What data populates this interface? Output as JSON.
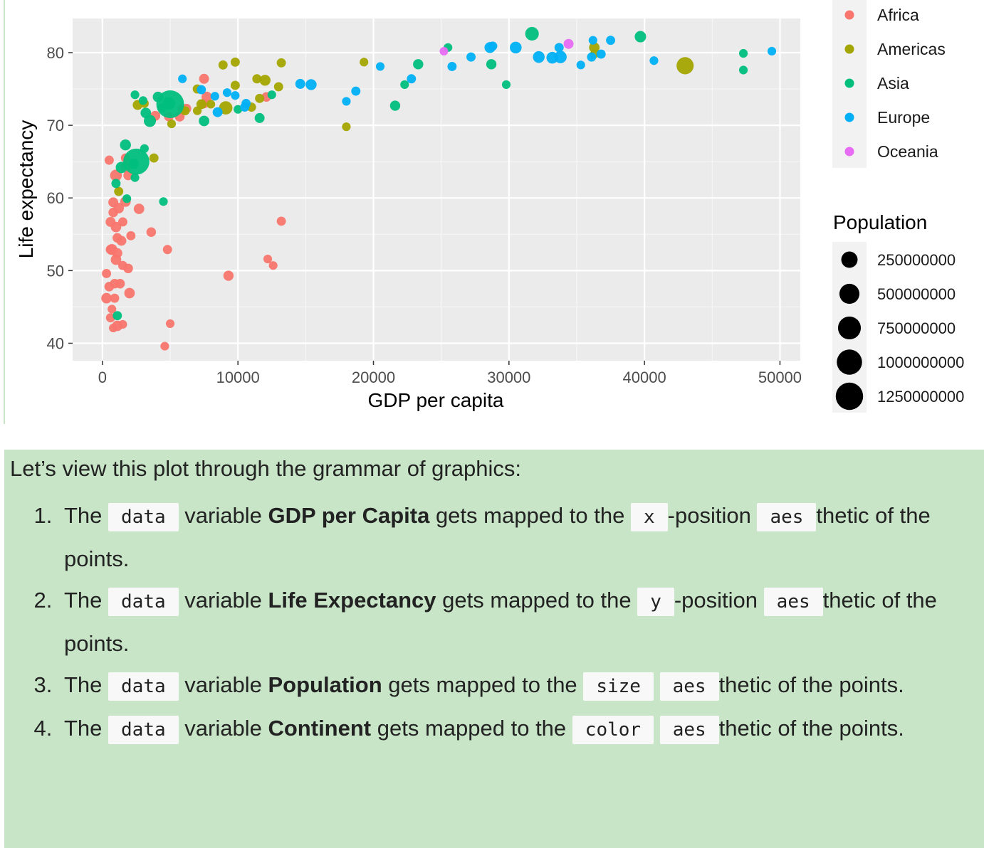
{
  "chart_data": {
    "type": "scatter",
    "title": "",
    "xlabel": "GDP per capita",
    "ylabel": "Life expectancy",
    "xlim": [
      -2200,
      51500
    ],
    "ylim": [
      37.6,
      84.7
    ],
    "xticks": [
      0,
      10000,
      20000,
      30000,
      40000,
      50000
    ],
    "yticks": [
      40,
      50,
      60,
      70,
      80
    ],
    "xtick_labels": [
      "0",
      "10000",
      "20000",
      "30000",
      "40000",
      "50000"
    ],
    "ytick_labels": [
      "40",
      "50",
      "60",
      "70",
      "80"
    ],
    "grid": true,
    "legend": {
      "color_title": "",
      "color_entries": [
        {
          "name": "Africa",
          "color": "#F8766D"
        },
        {
          "name": "Americas",
          "color": "#A3A500"
        },
        {
          "name": "Asia",
          "color": "#00BF7D"
        },
        {
          "name": "Europe",
          "color": "#00B0F6"
        },
        {
          "name": "Oceania",
          "color": "#E76BF3"
        }
      ],
      "size_title": "Population",
      "size_entries": [
        {
          "label": "250000000",
          "value": 250000000
        },
        {
          "label": "500000000",
          "value": 500000000
        },
        {
          "label": "750000000",
          "value": 750000000
        },
        {
          "label": "1000000000",
          "value": 1000000000
        },
        {
          "label": "1250000000",
          "value": 1250000000
        }
      ]
    },
    "series": [
      {
        "name": "Africa",
        "color": "#F8766D",
        "points": [
          [
            4600,
            39.6
          ],
          [
            800,
            42.1
          ],
          [
            1100,
            42.4
          ],
          [
            1500,
            42.6
          ],
          [
            5000,
            42.7
          ],
          [
            600,
            43.5
          ],
          [
            700,
            44.7
          ],
          [
            300,
            46.2
          ],
          [
            900,
            46.2
          ],
          [
            500,
            47.8
          ],
          [
            2000,
            46.9
          ],
          [
            900,
            48.2
          ],
          [
            1300,
            48.2
          ],
          [
            300,
            49.6
          ],
          [
            9300,
            49.3
          ],
          [
            1900,
            50.3
          ],
          [
            1500,
            50.7
          ],
          [
            12200,
            51.6
          ],
          [
            12600,
            50.7
          ],
          [
            1000,
            51.5
          ],
          [
            1100,
            52.4
          ],
          [
            600,
            52.9
          ],
          [
            700,
            52.9
          ],
          [
            4800,
            52.9
          ],
          [
            1400,
            54.1
          ],
          [
            1100,
            54.5
          ],
          [
            2100,
            54.8
          ],
          [
            3600,
            55.3
          ],
          [
            1000,
            56.0
          ],
          [
            600,
            56.7
          ],
          [
            1500,
            56.7
          ],
          [
            13200,
            56.8
          ],
          [
            800,
            58.0
          ],
          [
            1200,
            58.6
          ],
          [
            2700,
            58.5
          ],
          [
            800,
            59.4
          ],
          [
            1700,
            59.5
          ],
          [
            1900,
            63.1
          ],
          [
            1000,
            63.1
          ],
          [
            1700,
            64.2
          ],
          [
            500,
            65.2
          ],
          [
            1700,
            65.5
          ],
          [
            4900,
            71.2
          ],
          [
            5700,
            71.2
          ],
          [
            6200,
            72.3
          ],
          [
            7500,
            73.0
          ],
          [
            7700,
            73.9
          ],
          [
            12100,
            73.9
          ],
          [
            7500,
            76.4
          ],
          [
            3900,
            71.3
          ],
          [
            5900,
            72.2
          ]
        ],
        "pops": [
          5,
          5,
          30,
          5,
          5,
          10,
          5,
          30,
          10,
          15,
          30,
          15,
          15,
          10,
          25,
          15,
          10,
          5,
          5,
          30,
          20,
          15,
          40,
          10,
          20,
          15,
          10,
          15,
          30,
          20,
          10,
          10,
          15,
          30,
          30,
          20,
          30,
          15,
          60,
          30,
          10,
          10,
          15,
          20,
          15,
          15,
          30,
          15,
          20,
          20,
          15
        ]
      },
      {
        "name": "Americas",
        "color": "#A3A500",
        "points": [
          [
            43000,
            78.2
          ],
          [
            36300,
            80.7
          ],
          [
            36300,
            79.8
          ],
          [
            13200,
            78.6
          ],
          [
            11400,
            76.4
          ],
          [
            19300,
            78.7
          ],
          [
            9800,
            78.7
          ],
          [
            8900,
            78.3
          ],
          [
            9800,
            75.5
          ],
          [
            13000,
            75.3
          ],
          [
            12000,
            76.2
          ],
          [
            11600,
            73.7
          ],
          [
            9100,
            72.4
          ],
          [
            8000,
            72.9
          ],
          [
            7300,
            72.9
          ],
          [
            7000,
            75.0
          ],
          [
            6100,
            72.0
          ],
          [
            5100,
            70.2
          ],
          [
            3100,
            73.0
          ],
          [
            2600,
            72.8
          ],
          [
            3800,
            65.5
          ],
          [
            1200,
            60.9
          ],
          [
            18000,
            69.8
          ],
          [
            7000,
            72.0
          ],
          [
            11000,
            72.5
          ]
        ],
        "pops": [
          300,
          30,
          5,
          10,
          10,
          5,
          10,
          10,
          10,
          10,
          40,
          10,
          110,
          5,
          20,
          10,
          10,
          5,
          5,
          20,
          10,
          10,
          5,
          5,
          10
        ]
      },
      {
        "name": "Asia",
        "color": "#00BF7D",
        "points": [
          [
            31700,
            82.6
          ],
          [
            25500,
            80.7
          ],
          [
            39700,
            82.2
          ],
          [
            47300,
            79.9
          ],
          [
            47300,
            77.6
          ],
          [
            28700,
            78.4
          ],
          [
            23300,
            78.4
          ],
          [
            29800,
            75.6
          ],
          [
            22300,
            75.6
          ],
          [
            21600,
            72.7
          ],
          [
            12500,
            74.2
          ],
          [
            11600,
            71.0
          ],
          [
            10000,
            72.2
          ],
          [
            7500,
            70.6
          ],
          [
            5000,
            72.9
          ],
          [
            4900,
            73.0
          ],
          [
            2400,
            74.2
          ],
          [
            3000,
            73.4
          ],
          [
            4100,
            73.9
          ],
          [
            4400,
            72.4
          ],
          [
            3200,
            71.7
          ],
          [
            3500,
            70.6
          ],
          [
            2500,
            65.0
          ],
          [
            2300,
            64.7
          ],
          [
            1700,
            67.3
          ],
          [
            1400,
            64.2
          ],
          [
            2400,
            62.8
          ],
          [
            1000,
            62.0
          ],
          [
            1800,
            59.9
          ],
          [
            4500,
            59.5
          ],
          [
            1100,
            43.8
          ],
          [
            3100,
            66.8
          ]
        ],
        "pops": [
          120,
          5,
          50,
          5,
          5,
          25,
          25,
          5,
          5,
          25,
          5,
          20,
          5,
          30,
          1300,
          85,
          5,
          5,
          30,
          10,
          30,
          70,
          1100,
          25,
          40,
          50,
          5,
          10,
          5,
          5,
          10,
          5
        ]
      },
      {
        "name": "Europe",
        "color": "#00B0F6",
        "points": [
          [
            49400,
            80.2
          ],
          [
            40700,
            78.9
          ],
          [
            37500,
            81.7
          ],
          [
            36200,
            81.7
          ],
          [
            36800,
            79.8
          ],
          [
            36100,
            79.4
          ],
          [
            35300,
            78.3
          ],
          [
            33800,
            79.4
          ],
          [
            32200,
            79.4
          ],
          [
            33200,
            79.3
          ],
          [
            33700,
            80.7
          ],
          [
            30500,
            80.7
          ],
          [
            28600,
            80.7
          ],
          [
            28800,
            80.9
          ],
          [
            27200,
            79.4
          ],
          [
            25800,
            78.1
          ],
          [
            20500,
            78.1
          ],
          [
            22800,
            76.4
          ],
          [
            18700,
            74.7
          ],
          [
            18000,
            73.3
          ],
          [
            15400,
            75.6
          ],
          [
            14600,
            75.7
          ],
          [
            10500,
            72.5
          ],
          [
            10600,
            73.0
          ],
          [
            9800,
            74.1
          ],
          [
            8300,
            74.0
          ],
          [
            7300,
            74.9
          ],
          [
            5900,
            76.4
          ],
          [
            8500,
            71.8
          ],
          [
            9200,
            74.5
          ]
        ],
        "pops": [
          5,
          5,
          10,
          5,
          10,
          10,
          5,
          80,
          60,
          60,
          10,
          60,
          40,
          10,
          10,
          10,
          5,
          10,
          10,
          5,
          40,
          20,
          10,
          10,
          5,
          5,
          10,
          5,
          20,
          5
        ]
      },
      {
        "name": "Oceania",
        "color": "#E76BF3",
        "points": [
          [
            34400,
            81.2
          ],
          [
            25200,
            80.2
          ]
        ],
        "pops": [
          20,
          4
        ]
      }
    ]
  },
  "text": {
    "intro": "Let’s view this plot through the grammar of graphics:",
    "items": [
      {
        "the": "The",
        "code_data": "data",
        "variable": "variable",
        "name": "GDP per Capita",
        "mapped": "gets mapped to the",
        "aes_target": "x",
        "suffix": "-position",
        "aes_code": "aes",
        "thetic": "thetic of the points."
      },
      {
        "the": "The",
        "code_data": "data",
        "variable": "variable",
        "name": "Life Expectancy",
        "mapped": "gets mapped to the",
        "aes_target": "y",
        "suffix": "-position",
        "aes_code": "aes",
        "thetic": "thetic of the points."
      },
      {
        "the": "The",
        "code_data": "data",
        "variable": "variable",
        "name": "Population",
        "mapped": "gets mapped to the",
        "aes_target": "size",
        "suffix": "",
        "aes_code": "aes",
        "thetic": "thetic of the points."
      },
      {
        "the": "The",
        "code_data": "data",
        "variable": "variable",
        "name": "Continent",
        "mapped": "gets mapped to the",
        "aes_target": "color",
        "suffix": "",
        "aes_code": "aes",
        "thetic": "thetic of the points."
      }
    ]
  }
}
